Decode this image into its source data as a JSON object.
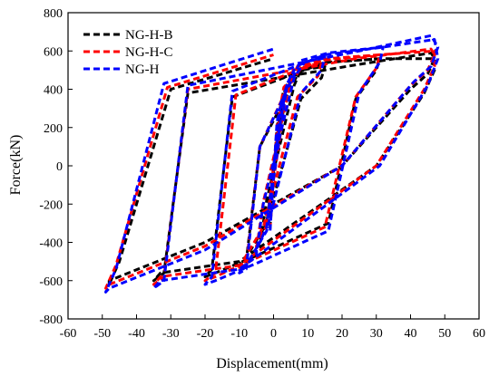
{
  "chart_data": {
    "type": "line",
    "xlabel": "Displacement(mm)",
    "ylabel": "Force(kN)",
    "xlim": [
      -60,
      60
    ],
    "ylim": [
      -800,
      800
    ],
    "xticks": [
      -60,
      -50,
      -40,
      -30,
      -20,
      -10,
      0,
      10,
      20,
      30,
      40,
      50,
      60
    ],
    "yticks": [
      -800,
      -600,
      -400,
      -200,
      0,
      200,
      400,
      600,
      800
    ],
    "grid": false,
    "legend": "top-left",
    "series": [
      {
        "name": "NG-H-B",
        "color": "#000000",
        "x": [
          0,
          2,
          3,
          2,
          -1,
          -2,
          -1,
          1,
          3,
          5,
          3,
          -2,
          -5,
          -4,
          -2,
          6,
          8,
          15,
          14,
          8,
          -2,
          -8,
          -10,
          -8,
          -4,
          8,
          16,
          31,
          30,
          24,
          16,
          -5,
          -17,
          -20,
          -18,
          -12,
          15,
          32,
          47,
          47,
          44,
          30,
          -10,
          -33,
          -35,
          -32,
          -25,
          25,
          46,
          47,
          45,
          40,
          20,
          -20,
          -48,
          -48,
          -45,
          -30,
          0
        ],
        "y": [
          0,
          200,
          300,
          280,
          -150,
          -300,
          -320,
          200,
          400,
          450,
          380,
          -300,
          -400,
          -420,
          -180,
          420,
          500,
          520,
          460,
          350,
          -300,
          -480,
          -520,
          -500,
          100,
          510,
          540,
          560,
          500,
          350,
          -300,
          -470,
          -560,
          -580,
          -540,
          360,
          540,
          560,
          560,
          500,
          380,
          0,
          -500,
          -560,
          -600,
          -560,
          380,
          530,
          590,
          560,
          480,
          400,
          0,
          -400,
          -600,
          -620,
          -500,
          400,
          560
        ]
      },
      {
        "name": "NG-H-C",
        "color": "#ff0000",
        "x": [
          0,
          2,
          3,
          2,
          -1,
          -2,
          -1,
          1,
          3,
          6,
          4,
          -2,
          -5,
          -5,
          -3,
          5,
          8,
          14,
          13,
          7,
          -3,
          -9,
          -10,
          -8,
          -4,
          7,
          16,
          31,
          30,
          24,
          15,
          -6,
          -17,
          -20,
          -17,
          -11,
          14,
          31,
          47,
          47,
          44,
          30,
          -10,
          -33,
          -35,
          -32,
          -25,
          24,
          46,
          47,
          45,
          40,
          20,
          -20,
          -48,
          -49,
          -46,
          -31,
          0
        ],
        "y": [
          0,
          210,
          320,
          290,
          -160,
          -310,
          -330,
          210,
          410,
          470,
          400,
          -310,
          -420,
          -440,
          -190,
          430,
          510,
          540,
          470,
          360,
          -320,
          -500,
          -540,
          -520,
          100,
          520,
          560,
          580,
          510,
          360,
          -320,
          -490,
          -580,
          -600,
          -560,
          370,
          550,
          580,
          600,
          520,
          400,
          0,
          -520,
          -580,
          -620,
          -580,
          400,
          560,
          610,
          580,
          500,
          420,
          0,
          -420,
          -620,
          -640,
          -520,
          410,
          580
        ]
      },
      {
        "name": "NG-H",
        "color": "#0000ff",
        "x": [
          0,
          2,
          3,
          2,
          -1,
          -2,
          -1,
          1,
          4,
          6,
          4,
          -2,
          -5,
          -5,
          -3,
          6,
          9,
          15,
          14,
          8,
          -2,
          -8,
          -10,
          -8,
          -4,
          8,
          16,
          32,
          31,
          25,
          16,
          -5,
          -17,
          -20,
          -18,
          -12,
          15,
          32,
          47,
          48,
          45,
          31,
          -10,
          -33,
          -35,
          -32,
          -25,
          25,
          46,
          48,
          46,
          41,
          20,
          -20,
          -48,
          -49,
          -46,
          -32,
          0
        ],
        "y": [
          0,
          230,
          340,
          310,
          -170,
          -320,
          -340,
          230,
          430,
          500,
          430,
          -320,
          -440,
          -460,
          -200,
          460,
          540,
          570,
          500,
          380,
          -340,
          -520,
          -560,
          -540,
          100,
          550,
          590,
          620,
          540,
          380,
          -340,
          -510,
          -600,
          -620,
          -580,
          390,
          580,
          620,
          660,
          560,
          420,
          0,
          -540,
          -600,
          -640,
          -600,
          420,
          600,
          680,
          620,
          520,
          440,
          0,
          -440,
          -640,
          -660,
          -540,
          430,
          610
        ]
      }
    ]
  }
}
